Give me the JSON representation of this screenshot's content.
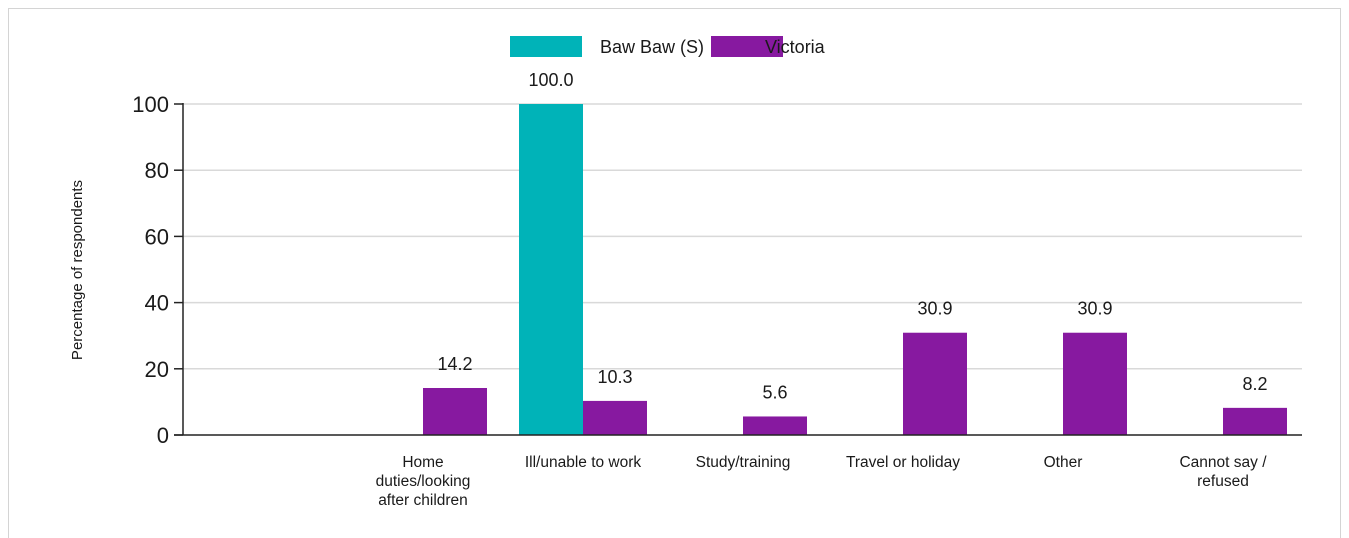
{
  "chart_data": {
    "type": "bar",
    "title": "",
    "xlabel": "",
    "ylabel": "Percentage of respondents",
    "ylim": [
      0,
      100
    ],
    "yticks": [
      0,
      20,
      40,
      60,
      80,
      100
    ],
    "grid": true,
    "legend_position": "top-center",
    "categories": [
      "Home duties/looking after children",
      "Ill/unable to work",
      "Study/training",
      "Travel or holiday",
      "Other",
      "Cannot say / refused"
    ],
    "category_lines": [
      [
        "Home",
        "duties/looking",
        "after children"
      ],
      [
        "Ill/unable to work"
      ],
      [
        "Study/training"
      ],
      [
        "Travel or holiday"
      ],
      [
        "Other"
      ],
      [
        "Cannot say /",
        "refused"
      ]
    ],
    "series": [
      {
        "name": "Baw Baw (S)",
        "color": "#00b3b8",
        "values": [
          null,
          100.0,
          null,
          null,
          null,
          null
        ],
        "labels": [
          "",
          "100.0",
          "",
          "",
          "",
          ""
        ]
      },
      {
        "name": "Victoria",
        "color": "#8719a0",
        "values": [
          14.2,
          10.3,
          5.6,
          30.9,
          30.9,
          8.2
        ],
        "labels": [
          "14.2",
          "10.3",
          "5.6",
          "30.9",
          "30.9",
          "8.2"
        ]
      }
    ]
  }
}
